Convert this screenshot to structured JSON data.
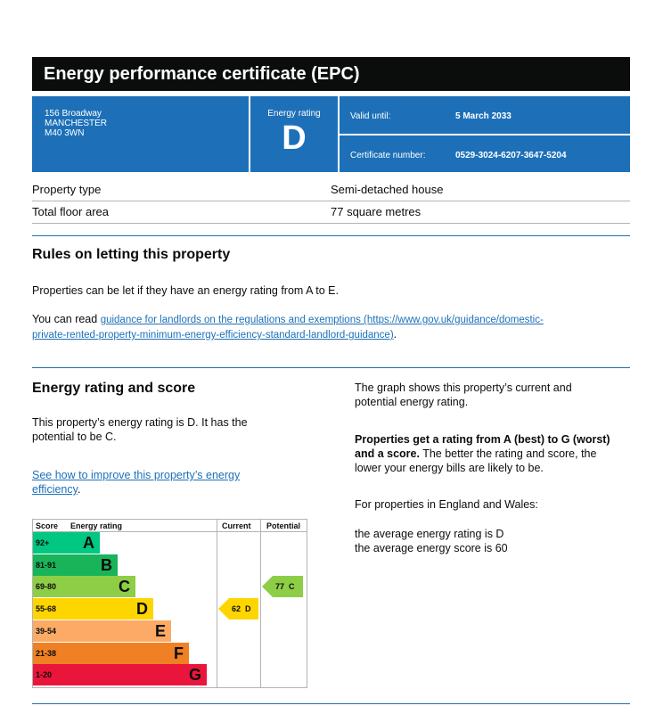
{
  "title": "Energy performance certificate (EPC)",
  "address": {
    "line1": "156 Broadway",
    "line2": "MANCHESTER",
    "line3": "M40 3WN"
  },
  "energy_rating": {
    "label": "Energy rating",
    "letter": "D"
  },
  "valid_until": {
    "label": "Valid until:",
    "value": "5 March 2033"
  },
  "certificate_number": {
    "label": "Certificate number:",
    "value": "0529-3024-6207-3647-5204"
  },
  "property": [
    {
      "label": "Property type",
      "value": "Semi-detached house"
    },
    {
      "label": "Total floor area",
      "value": "77 square metres"
    }
  ],
  "rules": {
    "heading": "Rules on letting this property",
    "para1": "Properties can be let if they have an energy rating from A to E.",
    "para2_prefix": "You can read ",
    "link_line1": "guidance for landlords on the regulations and exemptions (https://www.gov.uk/guidance/domestic-",
    "link_line2": "private-rented-property-minimum-energy-efficiency-standard-landlord-guidance)",
    "para2_suffix": "."
  },
  "score_section": {
    "heading": "Energy rating and score",
    "para1_line1": "This property’s energy rating is D. It has the",
    "para1_line2": "potential to be C.",
    "link_line1": "See how to improve this property’s energy",
    "link_line2": "efficiency",
    "link_suffix": ".",
    "right_para1_line1": "The graph shows this property’s current and",
    "right_para1_line2": "potential energy rating.",
    "right_bold_line1": "Properties get a rating from A (best) to G (worst)",
    "right_bold_line2": "and a score.",
    "right_rest_line2": " The better the rating and score, the",
    "right_rest_line3": "lower your energy bills are likely to be.",
    "right_para3": "For properties in England and Wales:",
    "right_para4_line1": "the average energy rating is D",
    "right_para4_line2": "the average energy score is 60"
  },
  "chart_data": {
    "type": "bar",
    "headers": {
      "score": "Score",
      "rating": "Energy rating",
      "current": "Current",
      "potential": "Potential"
    },
    "bands": [
      {
        "score": "92+",
        "letter": "A",
        "color": "#00c781"
      },
      {
        "score": "81-91",
        "letter": "B",
        "color": "#19b459"
      },
      {
        "score": "69-80",
        "letter": "C",
        "color": "#8dce46"
      },
      {
        "score": "55-68",
        "letter": "D",
        "color": "#ffd500"
      },
      {
        "score": "39-54",
        "letter": "E",
        "color": "#fcaa65"
      },
      {
        "score": "21-38",
        "letter": "F",
        "color": "#ef8023"
      },
      {
        "score": "1-20",
        "letter": "G",
        "color": "#e9153b"
      }
    ],
    "current": {
      "score": 62,
      "letter": "D",
      "label": "62  D",
      "color": "#ffd500"
    },
    "potential": {
      "score": 77,
      "letter": "C",
      "label": "77  C",
      "color": "#8dce46"
    }
  }
}
